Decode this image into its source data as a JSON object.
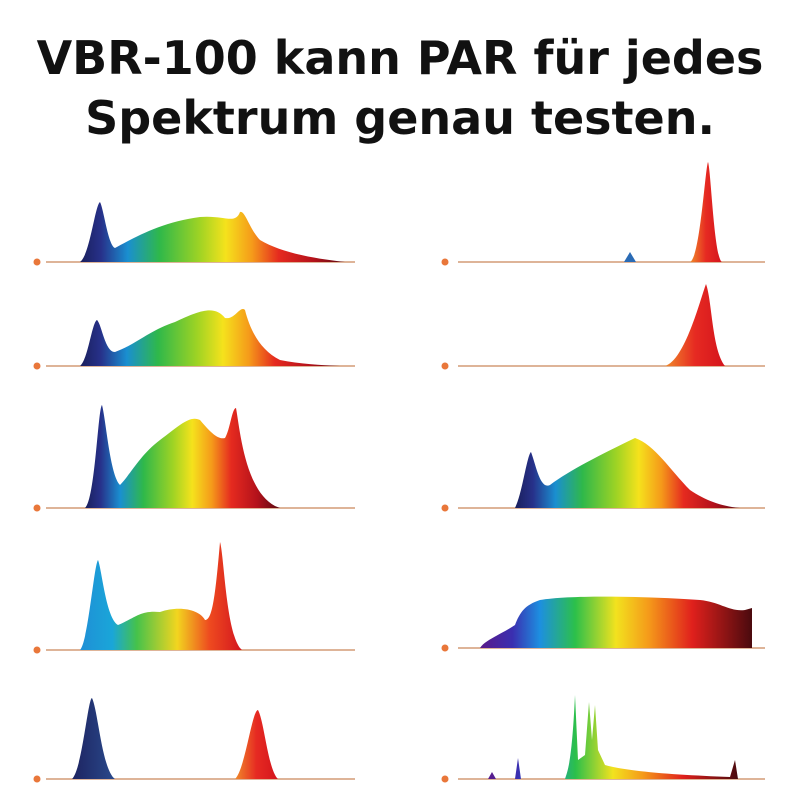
{
  "header": {
    "title_lines": [
      "VBR-100 kann PAR für jedes",
      "Spektrum genau testen."
    ]
  }
}
